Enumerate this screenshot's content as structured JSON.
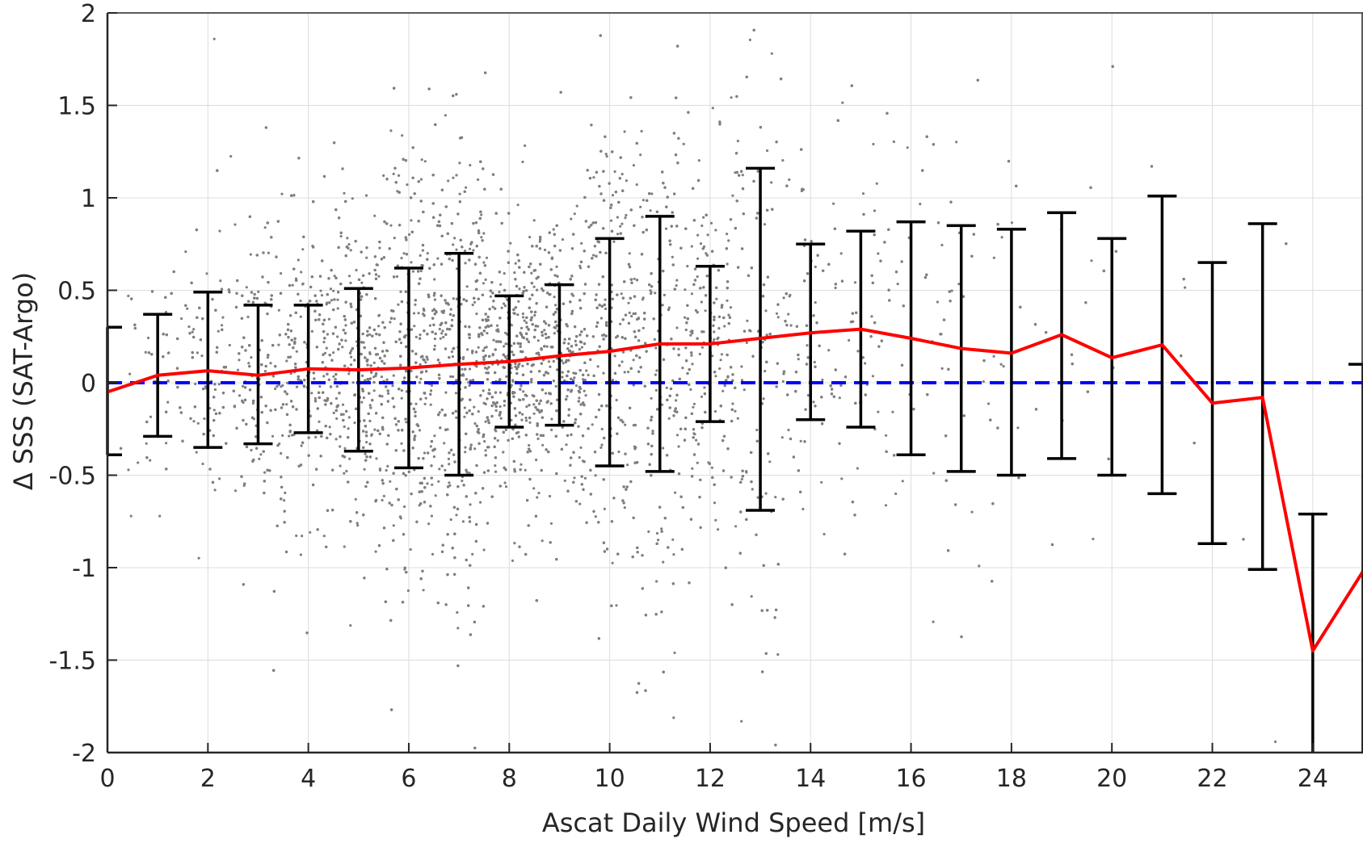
{
  "chart_data": {
    "type": "scatter",
    "title": "",
    "xlabel": "Ascat Daily Wind Speed [m/s]",
    "ylabel": "Δ SSS (SAT-Argo)",
    "xlim": [
      0,
      25
    ],
    "ylim": [
      -2,
      2
    ],
    "grid": true,
    "xticks": [
      0,
      2,
      4,
      6,
      8,
      10,
      12,
      14,
      16,
      18,
      20,
      22,
      24
    ],
    "yticks": [
      -2,
      -1.5,
      -1,
      -0.5,
      0,
      0.5,
      1,
      1.5,
      2
    ],
    "xtick_labels": [
      "0",
      "2",
      "4",
      "6",
      "8",
      "10",
      "12",
      "14",
      "16",
      "18",
      "20",
      "22",
      "24"
    ],
    "ytick_labels": [
      "-2",
      "-1.5",
      "-1",
      "-0.5",
      "0",
      "0.5",
      "1",
      "1.5",
      "2"
    ],
    "colors": {
      "scatter": "#7f7f7f",
      "mean_line": "#ff0000",
      "zero_line": "#0000ff",
      "error_bars": "#000000",
      "grid": "#dcdcdc",
      "axis": "#262626"
    },
    "series": [
      {
        "type": "errorbar_line",
        "x": [
          0,
          1,
          2,
          3,
          4,
          5,
          6,
          7,
          8,
          9,
          10,
          11,
          12,
          13,
          14,
          15,
          16,
          17,
          18,
          19,
          20,
          21,
          22,
          23,
          24,
          25
        ],
        "mean": [
          -0.05,
          0.04,
          0.065,
          0.04,
          0.075,
          0.07,
          0.08,
          0.1,
          0.115,
          0.145,
          0.17,
          0.21,
          0.21,
          0.24,
          0.27,
          0.29,
          0.24,
          0.185,
          0.16,
          0.26,
          0.135,
          0.205,
          -0.11,
          -0.08,
          -1.45,
          -1.02
        ],
        "upper": [
          0.3,
          0.37,
          0.49,
          0.42,
          0.42,
          0.51,
          0.62,
          0.7,
          0.47,
          0.53,
          0.78,
          0.9,
          0.63,
          1.16,
          0.75,
          0.82,
          0.87,
          0.85,
          0.83,
          0.92,
          0.78,
          1.01,
          0.65,
          0.86,
          -0.71,
          0.1
        ],
        "lower": [
          -0.39,
          -0.29,
          -0.35,
          -0.33,
          -0.27,
          -0.37,
          -0.46,
          -0.5,
          -0.24,
          -0.23,
          -0.45,
          -0.48,
          -0.21,
          -0.69,
          -0.2,
          -0.24,
          -0.39,
          -0.48,
          -0.5,
          -0.41,
          -0.5,
          -0.6,
          -0.87,
          -1.01,
          -2.0,
          -2.0
        ]
      },
      {
        "type": "reference_line",
        "y": 0,
        "style": "dashed"
      },
      {
        "type": "scatter_cloud",
        "description_points": "dense grey point cloud, centred near 0.1, spread largest between 4 and 12 m/s"
      }
    ]
  }
}
